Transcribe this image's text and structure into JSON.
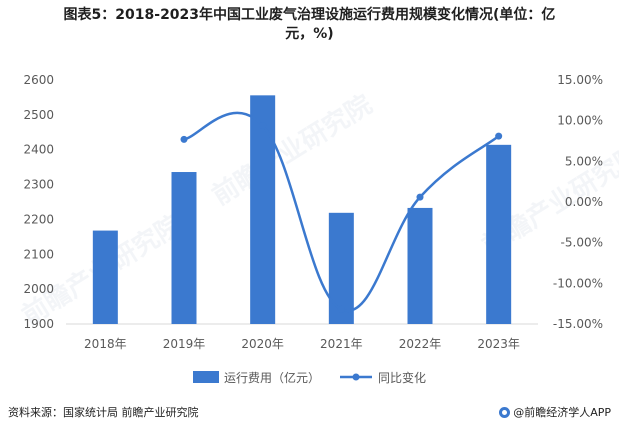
{
  "title_line1": "图表5：2018-2023年中国工业废气治理设施运行费用规模变化情况(单位：亿",
  "title_line2": "元，%)",
  "source": "资料来源：国家统计局 前瞻产业研究院",
  "brand": "@前瞻经济学人APP",
  "watermark": "前瞻产业研究院",
  "colors": {
    "bar": "#3b79cf",
    "line": "#3b79cf",
    "grid": "#d9d9d9",
    "axis_text": "#595959"
  },
  "chart_data": {
    "type": "bar",
    "categories": [
      "2018年",
      "2019年",
      "2020年",
      "2021年",
      "2022年",
      "2023年"
    ],
    "series": [
      {
        "name": "运行费用（亿元）",
        "type": "bar",
        "axis": "left",
        "values": [
          2168,
          2336,
          2556,
          2219,
          2233,
          2414
        ]
      },
      {
        "name": "同比变化",
        "type": "line",
        "axis": "right",
        "smooth": true,
        "values": [
          null,
          7.7,
          9.4,
          -13.2,
          0.6,
          8.1
        ]
      }
    ],
    "yleft": {
      "lim": [
        1900,
        2600
      ],
      "ticks": [
        1900,
        2000,
        2100,
        2200,
        2300,
        2400,
        2500,
        2600
      ]
    },
    "yright": {
      "lim": [
        -15,
        15
      ],
      "ticks": [
        "15.00%",
        "10.00%",
        "5.00%",
        "0.00%",
        "-5.00%",
        "-10.00%",
        "-15.00%"
      ],
      "tick_values": [
        15,
        10,
        5,
        0,
        -5,
        -10,
        -15
      ]
    },
    "legend_position": "bottom",
    "grid": true
  }
}
